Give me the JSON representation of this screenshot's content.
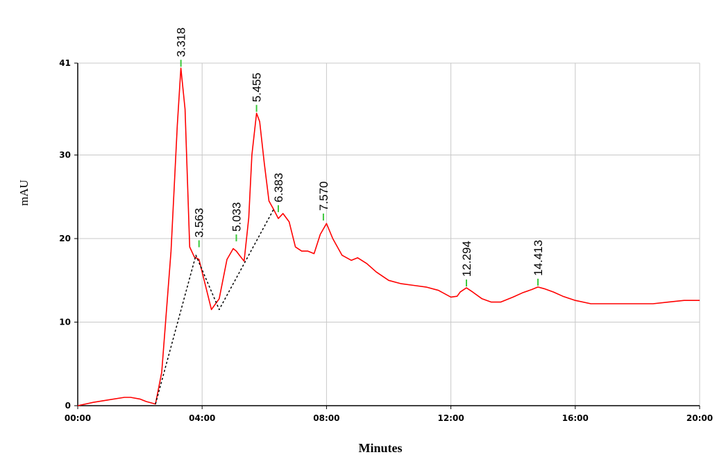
{
  "chart_data": {
    "type": "line",
    "title": "",
    "xlabel": "Minutes",
    "ylabel": "mAU",
    "xlim": [
      0,
      20
    ],
    "ylim": [
      0,
      41
    ],
    "grid": true,
    "x_ticks": [
      "00:00",
      "04:00",
      "08:00",
      "12:00",
      "16:00",
      "20:00"
    ],
    "x_tick_values": [
      0,
      4,
      8,
      12,
      16,
      20
    ],
    "y_ticks": [
      "0",
      "10",
      "20",
      "30",
      "41"
    ],
    "y_tick_values": [
      0,
      10,
      20,
      30,
      41
    ],
    "series": [
      {
        "color": "#ff0000",
        "x": [
          0,
          0.5,
          1.0,
          1.5,
          1.7,
          2.0,
          2.2,
          2.5,
          2.7,
          3.0,
          3.2,
          3.318,
          3.45,
          3.6,
          3.75,
          3.9,
          4.1,
          4.3,
          4.55,
          4.8,
          5.0,
          5.1,
          5.2,
          5.35,
          5.5,
          5.6,
          5.75,
          5.85,
          6.0,
          6.15,
          6.3,
          6.45,
          6.6,
          6.8,
          7.0,
          7.2,
          7.4,
          7.6,
          7.8,
          8.0,
          8.2,
          8.5,
          8.8,
          9.0,
          9.3,
          9.6,
          10.0,
          10.4,
          10.8,
          11.2,
          11.6,
          12.0,
          12.2,
          12.3,
          12.5,
          12.7,
          13.0,
          13.3,
          13.6,
          14.0,
          14.3,
          14.6,
          14.8,
          15.0,
          15.3,
          15.6,
          16.0,
          16.5,
          17.0,
          17.5,
          18.0,
          18.5,
          19.0,
          19.5,
          20.0
        ],
        "y": [
          0,
          0.4,
          0.7,
          1.0,
          1.0,
          0.8,
          0.5,
          0.2,
          4.0,
          18.5,
          33.5,
          40.4,
          35.5,
          19.0,
          17.8,
          17.5,
          14.5,
          11.5,
          12.8,
          17.5,
          18.8,
          18.5,
          18.0,
          17.3,
          22.5,
          30.0,
          35.0,
          34.0,
          29.0,
          24.5,
          23.5,
          22.4,
          23.0,
          22.0,
          19.0,
          18.5,
          18.5,
          18.2,
          20.5,
          21.8,
          20.0,
          18.0,
          17.4,
          17.7,
          17.0,
          16.0,
          15.0,
          14.6,
          14.4,
          14.2,
          13.8,
          13.0,
          13.1,
          13.6,
          14.1,
          13.6,
          12.8,
          12.4,
          12.4,
          13.0,
          13.5,
          13.9,
          14.2,
          14.0,
          13.6,
          13.1,
          12.6,
          12.2,
          12.2,
          12.2,
          12.2,
          12.2,
          12.4,
          12.6,
          12.6
        ]
      },
      {
        "color": "#000000",
        "style": "dashed",
        "x": [
          2.5,
          3.8,
          4.55,
          6.3
        ],
        "y": [
          0.2,
          18.0,
          11.5,
          23.5
        ]
      }
    ],
    "peaks": [
      {
        "label": "3.318",
        "x": 3.318,
        "y": 40.4
      },
      {
        "label": "3.563",
        "x": 3.9,
        "y": 18.8
      },
      {
        "label": "5.033",
        "x": 5.1,
        "y": 19.5
      },
      {
        "label": "5.455",
        "x": 5.75,
        "y": 35.0
      },
      {
        "label": "6.383",
        "x": 6.45,
        "y": 23.0
      },
      {
        "label": "7.570",
        "x": 7.9,
        "y": 22.0
      },
      {
        "label": "12.294",
        "x": 12.5,
        "y": 14.1
      },
      {
        "label": "14.413",
        "x": 14.8,
        "y": 14.2
      }
    ]
  }
}
